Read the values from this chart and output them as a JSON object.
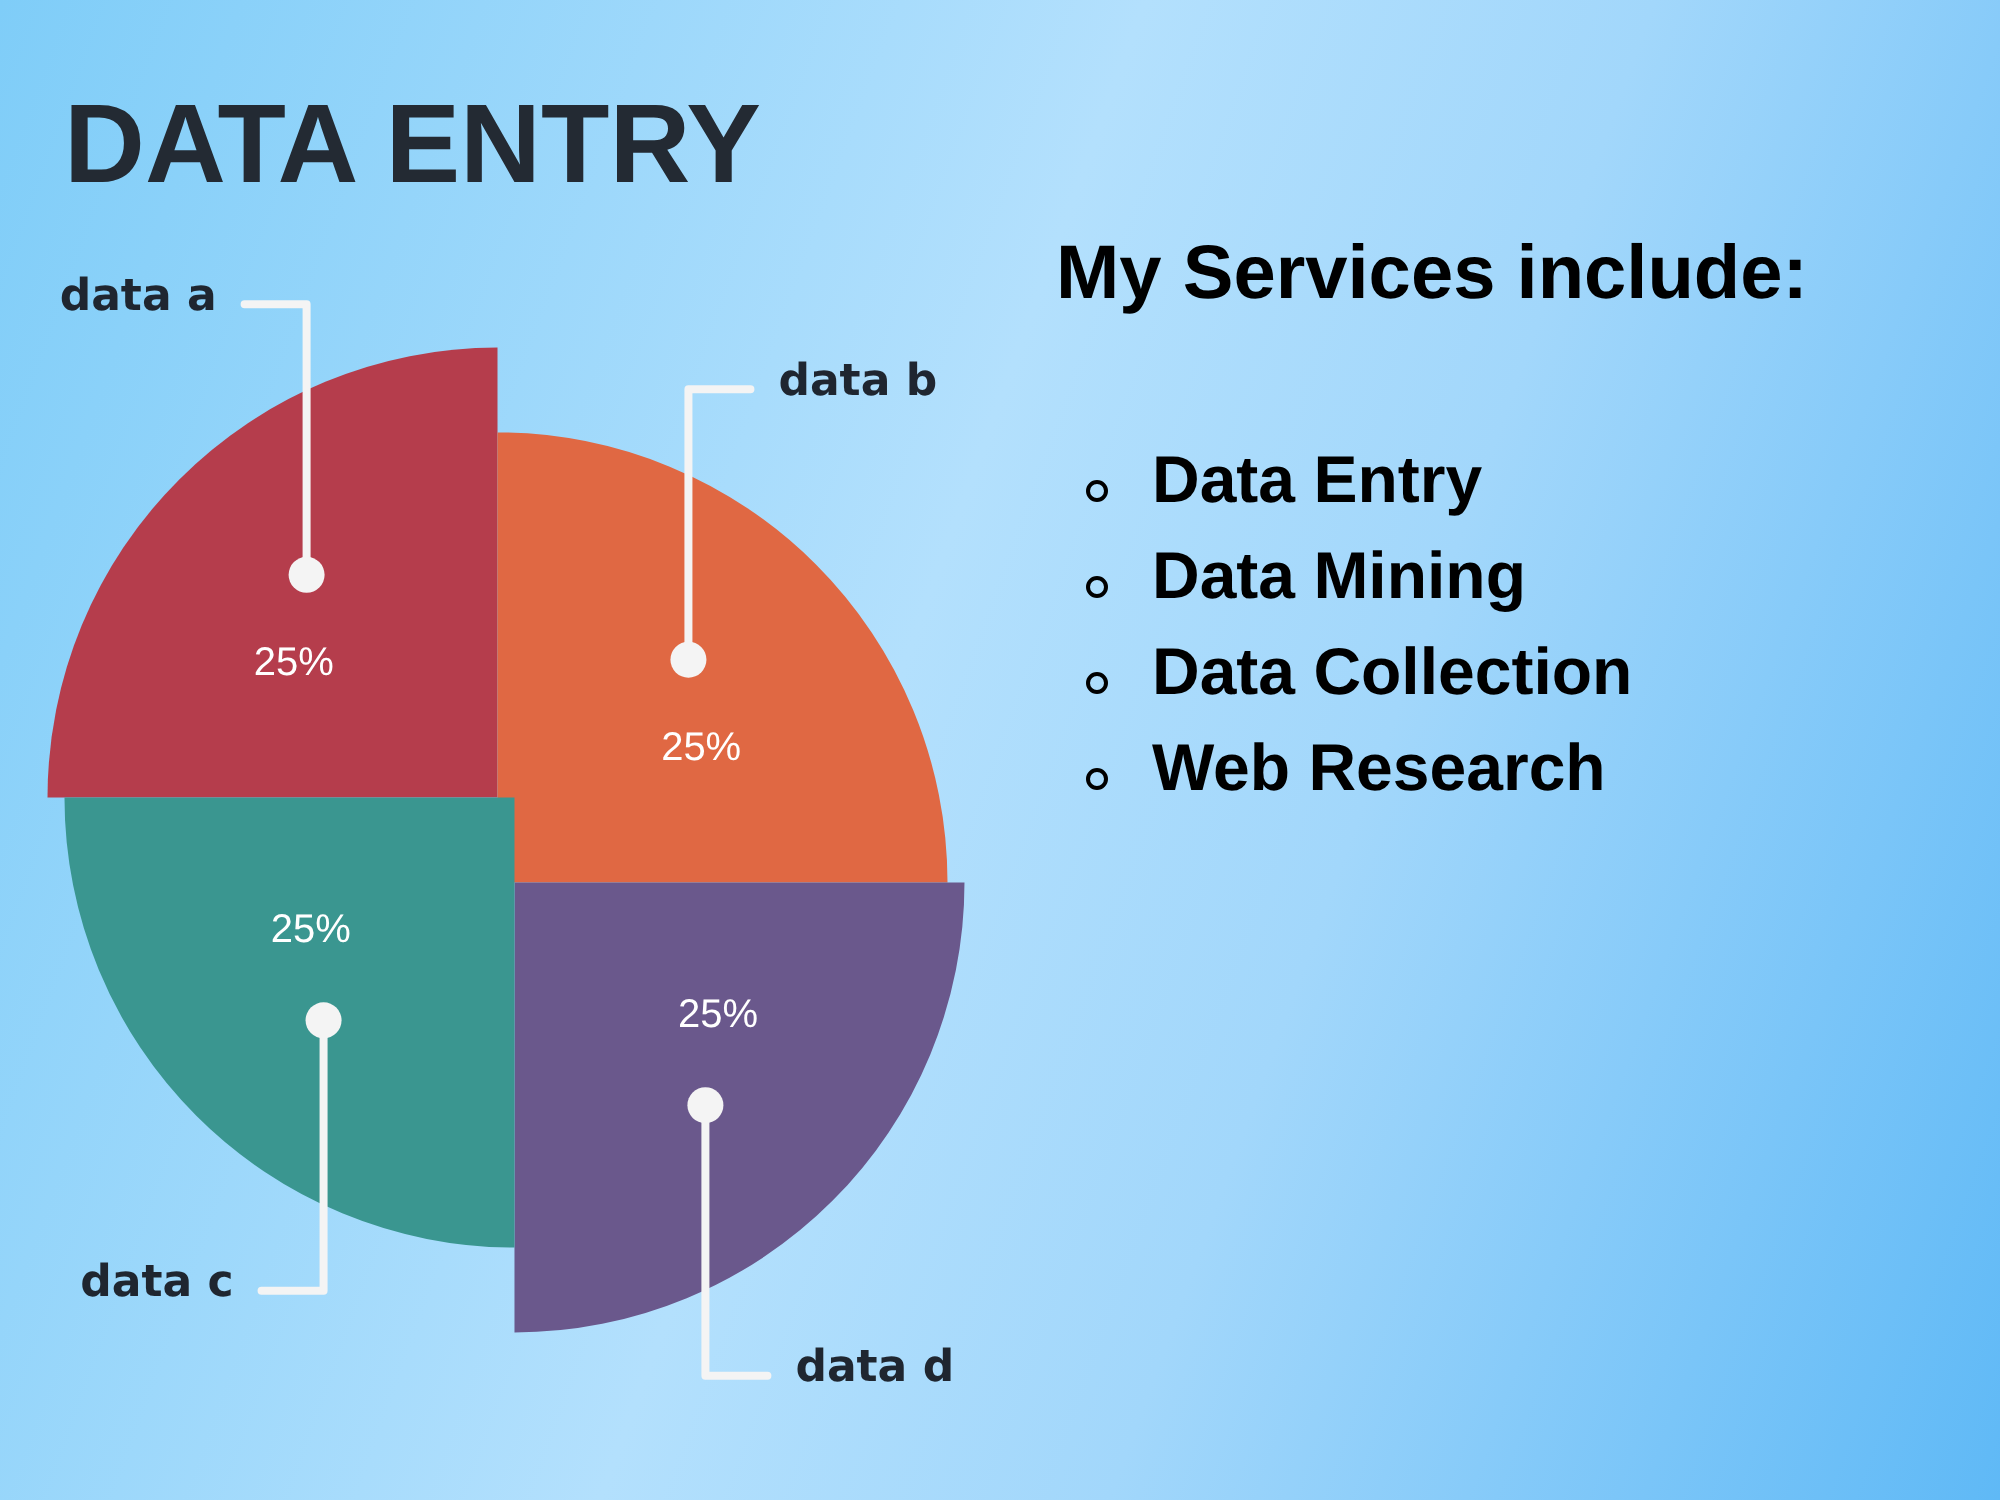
{
  "chart_data": [
    {
      "type": "pie",
      "title": "DATA ENTRY",
      "categories": [
        "data a",
        "data b",
        "data d",
        "data c"
      ],
      "values": [
        25,
        25,
        25,
        25
      ],
      "colors": [
        "#b53d4c",
        "#e06843",
        "#6a588c",
        "#3a9690"
      ],
      "value_labels": [
        "25%",
        "25%",
        "25%",
        "25%"
      ]
    },
    {
      "type": "other",
      "title": "My Services include:",
      "annotations": [
        "Data Entry",
        "Data Mining",
        "Data Collection",
        "Web Research"
      ]
    }
  ]
}
